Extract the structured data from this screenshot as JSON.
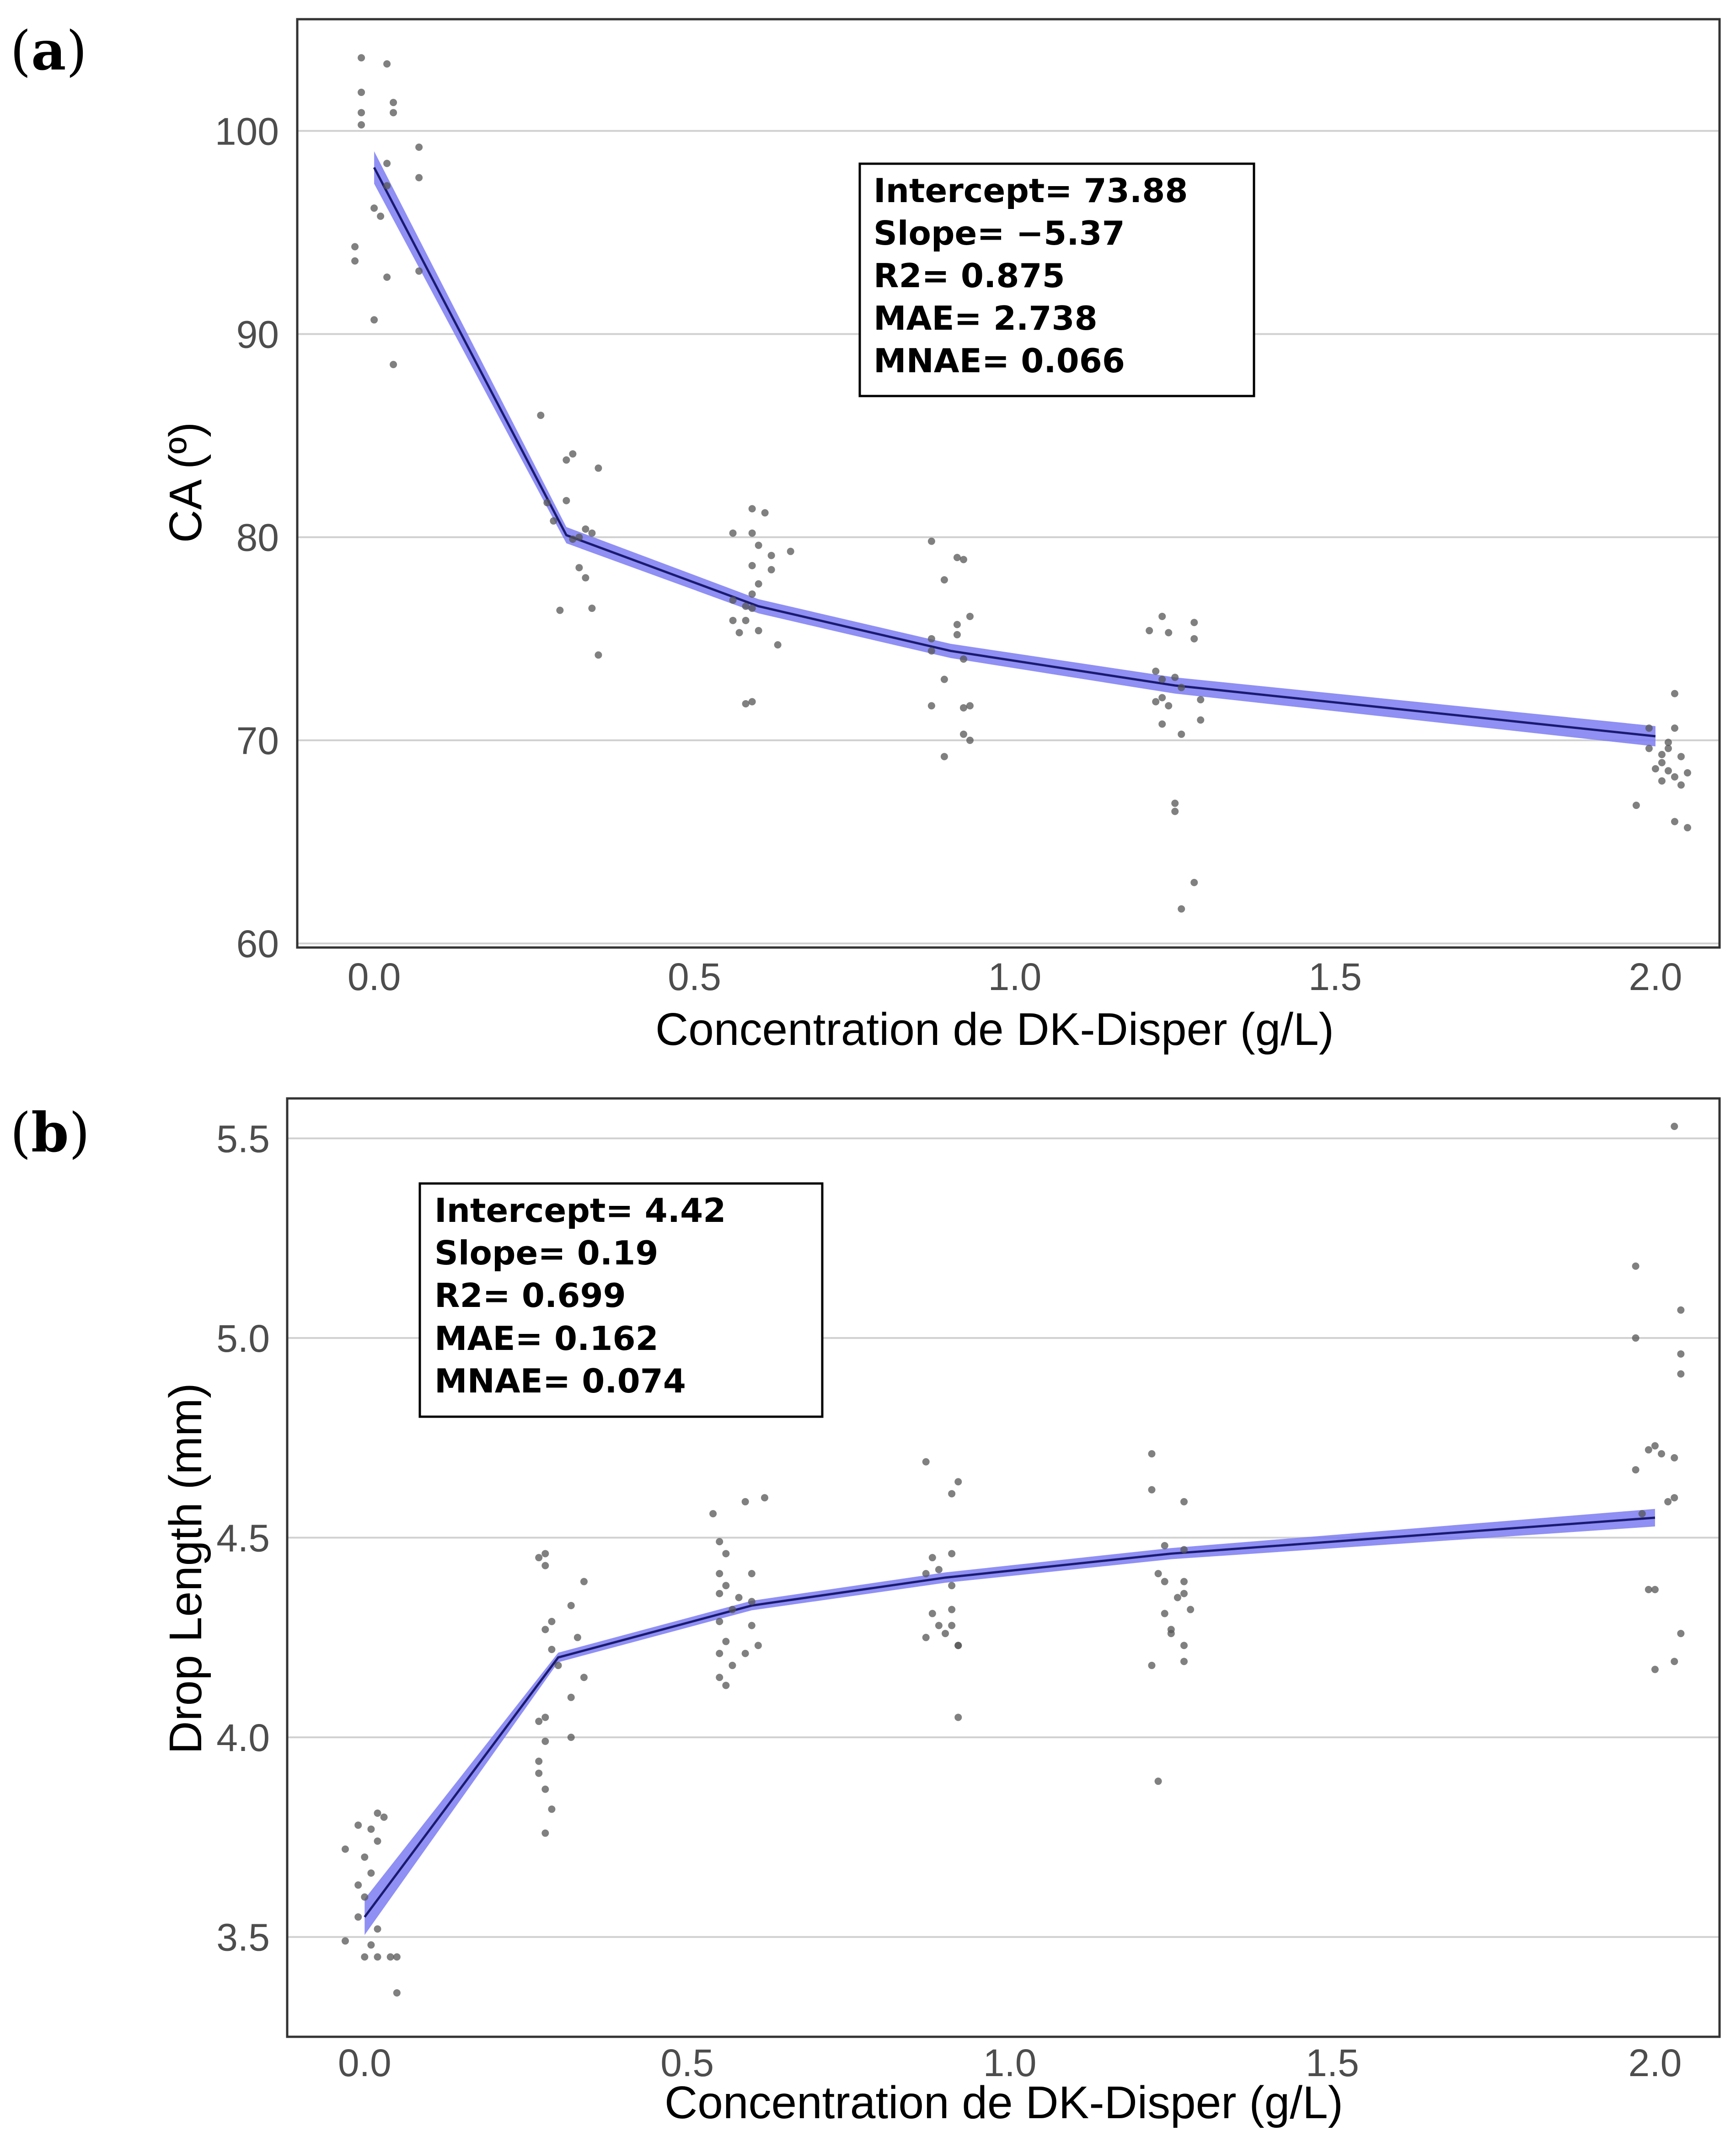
{
  "chart_data": [
    {
      "type": "scatter",
      "panel_label": {
        "open": "(",
        "letter": "a",
        "close": ")"
      },
      "xlabel": "Concentration de DK-Disper (g/L)",
      "ylabel": "CA (º)",
      "xlim": [
        -0.12,
        2.1
      ],
      "ylim": [
        59.8,
        105.5
      ],
      "x_ticks": [
        0.0,
        0.5,
        1.0,
        1.5,
        2.0
      ],
      "x_tick_labels": [
        "0.0",
        "0.5",
        "1.0",
        "1.5",
        "2.0"
      ],
      "y_ticks": [
        60,
        70,
        80,
        90,
        100
      ],
      "y_tick_labels": [
        "60",
        "70",
        "80",
        "90",
        "100"
      ],
      "grid": "horizontal",
      "stats_box_position": "top-center",
      "stats": [
        "Intercept= 73.88",
        "Slope= −5.37",
        "R2= 0.875",
        "MAE= 2.738",
        "MNAE= 0.066"
      ],
      "fit": {
        "x": [
          0.0,
          0.3,
          0.6,
          0.9,
          1.25,
          2.0
        ],
        "y": [
          98.2,
          80.1,
          76.6,
          74.4,
          72.7,
          70.2
        ],
        "ci_halfwidth": [
          0.8,
          0.4,
          0.35,
          0.35,
          0.4,
          0.5
        ]
      },
      "points": [
        [
          -0.02,
          103.6
        ],
        [
          0.02,
          103.3
        ],
        [
          -0.02,
          101.9
        ],
        [
          0.03,
          101.4
        ],
        [
          -0.02,
          100.9
        ],
        [
          0.03,
          100.9
        ],
        [
          -0.02,
          100.3
        ],
        [
          0.07,
          99.2
        ],
        [
          0.02,
          98.4
        ],
        [
          0.07,
          97.7
        ],
        [
          0.02,
          97.3
        ],
        [
          0.0,
          96.2
        ],
        [
          0.01,
          95.8
        ],
        [
          -0.03,
          94.3
        ],
        [
          -0.03,
          93.6
        ],
        [
          0.07,
          93.1
        ],
        [
          0.02,
          92.8
        ],
        [
          0.0,
          90.7
        ],
        [
          0.03,
          88.5
        ],
        [
          0.26,
          86.0
        ],
        [
          0.31,
          84.1
        ],
        [
          0.3,
          83.8
        ],
        [
          0.35,
          83.4
        ],
        [
          0.27,
          81.7
        ],
        [
          0.3,
          81.8
        ],
        [
          0.28,
          80.8
        ],
        [
          0.33,
          80.4
        ],
        [
          0.34,
          80.2
        ],
        [
          0.32,
          80.0
        ],
        [
          0.31,
          79.9
        ],
        [
          0.32,
          78.5
        ],
        [
          0.33,
          78.0
        ],
        [
          0.29,
          76.4
        ],
        [
          0.34,
          76.5
        ],
        [
          0.35,
          74.2
        ],
        [
          0.59,
          81.4
        ],
        [
          0.61,
          81.2
        ],
        [
          0.59,
          80.2
        ],
        [
          0.56,
          80.2
        ],
        [
          0.6,
          79.6
        ],
        [
          0.65,
          79.3
        ],
        [
          0.62,
          79.1
        ],
        [
          0.59,
          78.6
        ],
        [
          0.62,
          78.4
        ],
        [
          0.6,
          77.7
        ],
        [
          0.59,
          77.2
        ],
        [
          0.56,
          76.9
        ],
        [
          0.58,
          76.6
        ],
        [
          0.59,
          76.5
        ],
        [
          0.58,
          75.9
        ],
        [
          0.56,
          75.9
        ],
        [
          0.57,
          75.3
        ],
        [
          0.6,
          75.4
        ],
        [
          0.63,
          74.7
        ],
        [
          0.59,
          71.9
        ],
        [
          0.58,
          71.8
        ],
        [
          0.87,
          79.8
        ],
        [
          0.91,
          79.0
        ],
        [
          0.92,
          78.9
        ],
        [
          0.89,
          77.9
        ],
        [
          0.93,
          76.1
        ],
        [
          0.91,
          75.7
        ],
        [
          0.91,
          75.2
        ],
        [
          0.87,
          75.0
        ],
        [
          0.92,
          74.0
        ],
        [
          0.87,
          74.4
        ],
        [
          0.89,
          73.0
        ],
        [
          0.93,
          71.7
        ],
        [
          0.87,
          71.7
        ],
        [
          0.92,
          71.6
        ],
        [
          0.92,
          70.3
        ],
        [
          0.93,
          70.0
        ],
        [
          0.89,
          69.2
        ],
        [
          1.23,
          76.1
        ],
        [
          1.21,
          75.4
        ],
        [
          1.24,
          75.3
        ],
        [
          1.28,
          75.8
        ],
        [
          1.28,
          75.0
        ],
        [
          1.22,
          73.4
        ],
        [
          1.23,
          73.0
        ],
        [
          1.25,
          73.1
        ],
        [
          1.26,
          72.6
        ],
        [
          1.23,
          72.1
        ],
        [
          1.29,
          72.0
        ],
        [
          1.22,
          71.9
        ],
        [
          1.24,
          71.7
        ],
        [
          1.29,
          71.0
        ],
        [
          1.23,
          70.8
        ],
        [
          1.26,
          70.3
        ],
        [
          1.25,
          66.9
        ],
        [
          1.25,
          66.5
        ],
        [
          1.28,
          63.0
        ],
        [
          1.26,
          61.7
        ],
        [
          2.03,
          72.3
        ],
        [
          1.99,
          70.6
        ],
        [
          2.03,
          70.6
        ],
        [
          2.02,
          69.6
        ],
        [
          2.02,
          69.9
        ],
        [
          2.01,
          69.3
        ],
        [
          1.99,
          69.6
        ],
        [
          2.04,
          69.2
        ],
        [
          2.01,
          68.9
        ],
        [
          2.0,
          68.6
        ],
        [
          2.02,
          68.5
        ],
        [
          2.05,
          68.4
        ],
        [
          2.03,
          68.2
        ],
        [
          2.01,
          68.0
        ],
        [
          2.04,
          67.8
        ],
        [
          1.97,
          66.8
        ],
        [
          2.03,
          66.0
        ],
        [
          2.05,
          65.7
        ]
      ]
    },
    {
      "type": "scatter",
      "panel_label": {
        "open": "(",
        "letter": "b",
        "close": ")"
      },
      "xlabel": "Concentration de DK-Disper (g/L)",
      "ylabel": "Drop Length (mm)",
      "xlim": [
        -0.12,
        2.1
      ],
      "ylim": [
        3.25,
        5.6
      ],
      "x_ticks": [
        0.0,
        0.5,
        1.0,
        1.5,
        2.0
      ],
      "x_tick_labels": [
        "0.0",
        "0.5",
        "1.0",
        "1.5",
        "2.0"
      ],
      "y_ticks": [
        3.5,
        4.0,
        4.5,
        5.0,
        5.5
      ],
      "y_tick_labels": [
        "3.5",
        "4.0",
        "4.5",
        "5.0",
        "5.5"
      ],
      "grid": "horizontal",
      "stats_box_position": "top-left",
      "stats": [
        "Intercept= 4.42",
        "Slope= 0.19",
        "R2= 0.699",
        "MAE= 0.162",
        "MNAE= 0.074"
      ],
      "fit": {
        "x": [
          0.0,
          0.3,
          0.6,
          0.9,
          1.25,
          2.0
        ],
        "y": [
          3.55,
          4.2,
          4.33,
          4.4,
          4.46,
          4.55
        ],
        "ci_halfwidth": [
          0.045,
          0.012,
          0.012,
          0.013,
          0.014,
          0.022
        ]
      },
      "points": [
        [
          0.02,
          3.81
        ],
        [
          0.03,
          3.8
        ],
        [
          -0.01,
          3.78
        ],
        [
          0.01,
          3.77
        ],
        [
          0.02,
          3.74
        ],
        [
          -0.03,
          3.72
        ],
        [
          0.0,
          3.7
        ],
        [
          0.01,
          3.66
        ],
        [
          -0.01,
          3.63
        ],
        [
          0.0,
          3.6
        ],
        [
          -0.01,
          3.55
        ],
        [
          0.02,
          3.52
        ],
        [
          -0.03,
          3.49
        ],
        [
          0.01,
          3.48
        ],
        [
          0.0,
          3.45
        ],
        [
          0.02,
          3.45
        ],
        [
          0.04,
          3.45
        ],
        [
          0.05,
          3.45
        ],
        [
          0.05,
          3.36
        ],
        [
          0.28,
          4.46
        ],
        [
          0.27,
          4.45
        ],
        [
          0.28,
          4.43
        ],
        [
          0.34,
          4.39
        ],
        [
          0.32,
          4.33
        ],
        [
          0.29,
          4.29
        ],
        [
          0.28,
          4.27
        ],
        [
          0.33,
          4.25
        ],
        [
          0.29,
          4.22
        ],
        [
          0.3,
          4.18
        ],
        [
          0.34,
          4.15
        ],
        [
          0.32,
          4.1
        ],
        [
          0.28,
          4.05
        ],
        [
          0.27,
          4.04
        ],
        [
          0.28,
          3.99
        ],
        [
          0.32,
          4.0
        ],
        [
          0.27,
          3.94
        ],
        [
          0.27,
          3.91
        ],
        [
          0.28,
          3.87
        ],
        [
          0.29,
          3.82
        ],
        [
          0.28,
          3.76
        ],
        [
          0.54,
          4.56
        ],
        [
          0.55,
          4.49
        ],
        [
          0.59,
          4.59
        ],
        [
          0.56,
          4.46
        ],
        [
          0.55,
          4.41
        ],
        [
          0.56,
          4.38
        ],
        [
          0.55,
          4.36
        ],
        [
          0.58,
          4.35
        ],
        [
          0.6,
          4.34
        ],
        [
          0.57,
          4.32
        ],
        [
          0.55,
          4.29
        ],
        [
          0.6,
          4.28
        ],
        [
          0.56,
          4.24
        ],
        [
          0.61,
          4.23
        ],
        [
          0.55,
          4.21
        ],
        [
          0.59,
          4.21
        ],
        [
          0.57,
          4.18
        ],
        [
          0.55,
          4.15
        ],
        [
          0.56,
          4.13
        ],
        [
          0.62,
          4.6
        ],
        [
          0.6,
          4.41
        ],
        [
          0.87,
          4.69
        ],
        [
          0.92,
          4.64
        ],
        [
          0.91,
          4.61
        ],
        [
          0.88,
          4.45
        ],
        [
          0.91,
          4.46
        ],
        [
          0.89,
          4.42
        ],
        [
          0.91,
          4.38
        ],
        [
          0.91,
          4.32
        ],
        [
          0.88,
          4.31
        ],
        [
          0.89,
          4.28
        ],
        [
          0.91,
          4.28
        ],
        [
          0.9,
          4.26
        ],
        [
          0.87,
          4.25
        ],
        [
          0.92,
          4.23
        ],
        [
          0.92,
          4.23
        ],
        [
          0.92,
          4.05
        ],
        [
          0.87,
          4.41
        ],
        [
          1.22,
          4.71
        ],
        [
          1.22,
          4.62
        ],
        [
          1.27,
          4.59
        ],
        [
          1.24,
          4.48
        ],
        [
          1.27,
          4.47
        ],
        [
          1.23,
          4.41
        ],
        [
          1.27,
          4.39
        ],
        [
          1.24,
          4.39
        ],
        [
          1.27,
          4.36
        ],
        [
          1.26,
          4.35
        ],
        [
          1.28,
          4.32
        ],
        [
          1.24,
          4.31
        ],
        [
          1.25,
          4.27
        ],
        [
          1.25,
          4.26
        ],
        [
          1.27,
          4.23
        ],
        [
          1.22,
          4.18
        ],
        [
          1.27,
          4.19
        ],
        [
          1.23,
          3.89
        ],
        [
          2.03,
          5.53
        ],
        [
          1.97,
          5.18
        ],
        [
          1.97,
          5.0
        ],
        [
          2.04,
          5.07
        ],
        [
          2.04,
          4.96
        ],
        [
          2.04,
          4.91
        ],
        [
          2.0,
          4.73
        ],
        [
          1.99,
          4.72
        ],
        [
          2.01,
          4.71
        ],
        [
          2.03,
          4.7
        ],
        [
          1.97,
          4.67
        ],
        [
          2.03,
          4.6
        ],
        [
          2.02,
          4.59
        ],
        [
          1.98,
          4.56
        ],
        [
          1.99,
          4.37
        ],
        [
          2.0,
          4.37
        ],
        [
          2.04,
          4.26
        ],
        [
          2.03,
          4.19
        ],
        [
          2.0,
          4.17
        ]
      ]
    }
  ]
}
